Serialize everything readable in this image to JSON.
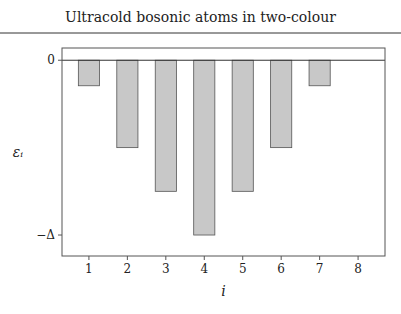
{
  "chart_data": {
    "type": "bar",
    "title": "Ultracold bosonic atoms in two-colour",
    "xlabel": "i",
    "ylabel": "εᵢ",
    "categories": [
      1,
      2,
      3,
      4,
      5,
      6,
      7,
      8
    ],
    "values": [
      -0.146,
      -0.5,
      -0.75,
      -1.0,
      -0.75,
      -0.5,
      -0.146,
      0.0
    ],
    "color": "#c8c8c8",
    "xlim": [
      0.3,
      8.7
    ],
    "xticks": [
      1,
      2,
      3,
      4,
      5,
      6,
      7,
      8
    ],
    "ylim": [
      -1.12,
      0.07
    ],
    "yticks": [
      {
        "value": -1.0,
        "label": "−Δ"
      },
      0
    ],
    "grid": false
  }
}
